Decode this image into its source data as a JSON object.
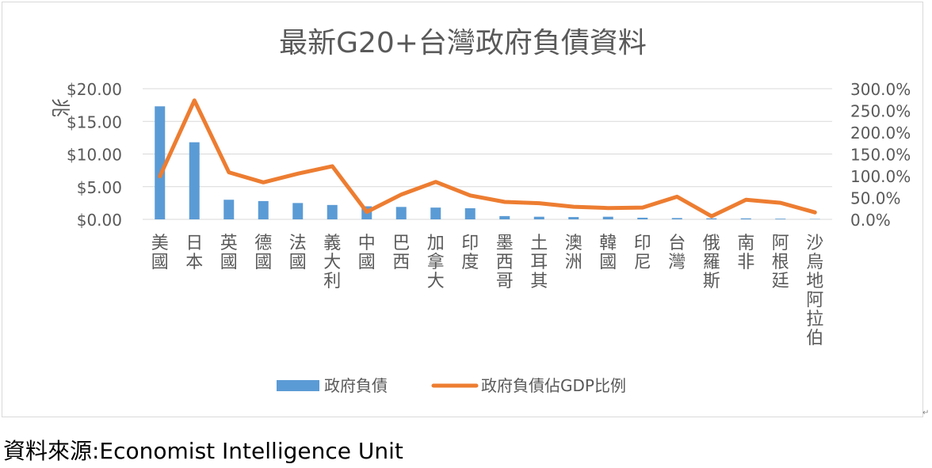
{
  "chart_data": {
    "type": "bar+line",
    "title": "最新G20+台灣政府負債資料",
    "ylabel": "兆",
    "categories": [
      "美國",
      "日本",
      "英國",
      "德國",
      "法國",
      "義大利",
      "中國",
      "巴西",
      "加拿大",
      "印度",
      "墨西哥",
      "土耳其",
      "澳洲",
      "韓國",
      "印尼",
      "台灣",
      "俄羅斯",
      "南非",
      "阿根廷",
      "沙烏地阿拉伯"
    ],
    "series": [
      {
        "name": "政府負債",
        "type": "bar",
        "axis": "left",
        "values": [
          17.3,
          11.8,
          3.0,
          2.8,
          2.5,
          2.2,
          2.0,
          1.9,
          1.8,
          1.7,
          0.5,
          0.4,
          0.35,
          0.4,
          0.25,
          0.2,
          0.15,
          0.15,
          0.1,
          0.05
        ]
      },
      {
        "name": "政府負債佔GDP比例",
        "type": "line",
        "axis": "right",
        "values": [
          0.99,
          2.73,
          1.08,
          0.85,
          1.05,
          1.22,
          0.17,
          0.57,
          0.86,
          0.55,
          0.4,
          0.37,
          0.29,
          0.26,
          0.27,
          0.52,
          0.07,
          0.45,
          0.38,
          0.16
        ]
      }
    ],
    "left_axis": {
      "ylim": [
        0,
        20
      ],
      "ticks": [
        "$0.00",
        "$5.00",
        "$10.00",
        "$15.00",
        "$20.00"
      ]
    },
    "right_axis": {
      "ylim": [
        0,
        3.0
      ],
      "ticks": [
        "0.0%",
        "50.0%",
        "100.0%",
        "150.0%",
        "200.0%",
        "250.0%",
        "300.0%"
      ]
    },
    "grid": true,
    "legend": "bottom",
    "colors": {
      "bar": "#5b9bd5",
      "line": "#ed7d31",
      "grid": "#d9d9d9",
      "text": "#595959"
    }
  },
  "source_note": "資料來源:Economist Intelligence Unit"
}
